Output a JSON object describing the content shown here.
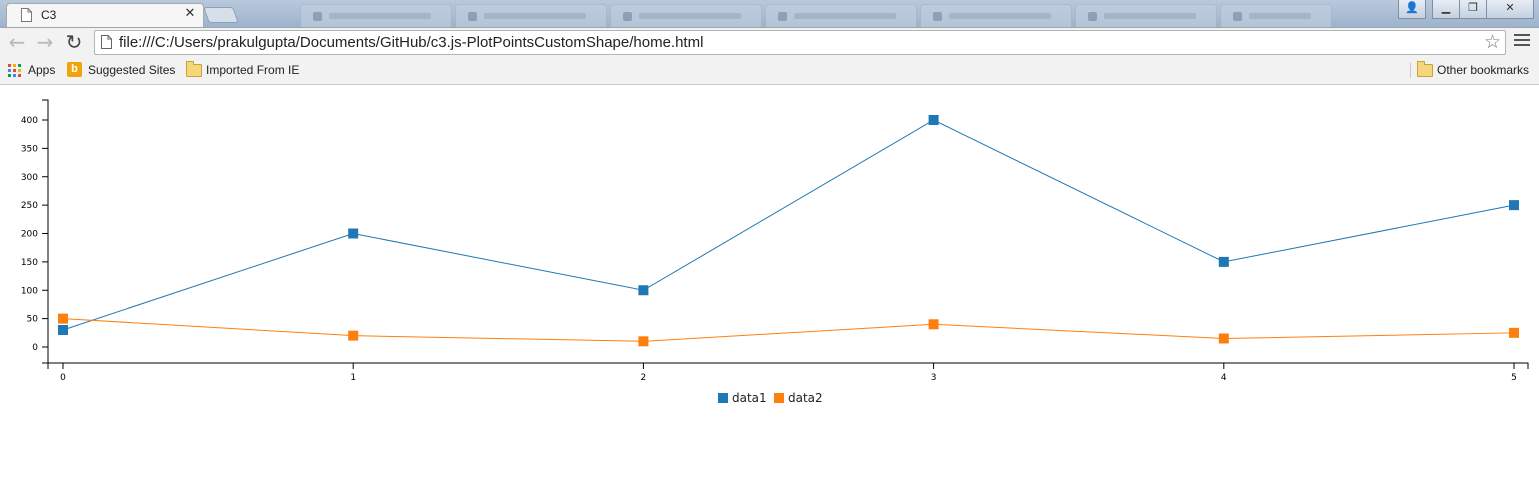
{
  "browser": {
    "tab": {
      "title": "C3"
    },
    "toolbar": {
      "url": "file:///C:/Users/prakulgupta/Documents/GitHub/c3.js-PlotPointsCustomShape/home.html"
    },
    "bookmarks": [
      {
        "label": "Apps",
        "icon": "apps-grid-icon"
      },
      {
        "label": "Suggested Sites",
        "icon": "bing-icon"
      },
      {
        "label": "Imported From IE",
        "icon": "folder-icon"
      }
    ],
    "other_bookmarks": {
      "label": "Other bookmarks",
      "icon": "folder-icon"
    }
  },
  "chart_data": {
    "type": "line",
    "x": [
      0,
      1,
      2,
      3,
      4,
      5
    ],
    "series": [
      {
        "name": "data1",
        "values": [
          30,
          200,
          100,
          400,
          150,
          250
        ],
        "color": "#1f77b4"
      },
      {
        "name": "data2",
        "values": [
          50,
          20,
          10,
          40,
          15,
          25
        ],
        "color": "#ff7f0e"
      }
    ],
    "x_ticks": [
      "0",
      "1",
      "2",
      "3",
      "4",
      "5"
    ],
    "y_ticks": [
      "0",
      "50",
      "100",
      "150",
      "200",
      "250",
      "300",
      "350",
      "400"
    ],
    "ylim": [
      -30,
      440
    ],
    "xlim": [
      0,
      5
    ],
    "marker": "square",
    "legend_position": "bottom-center",
    "grid": false
  }
}
